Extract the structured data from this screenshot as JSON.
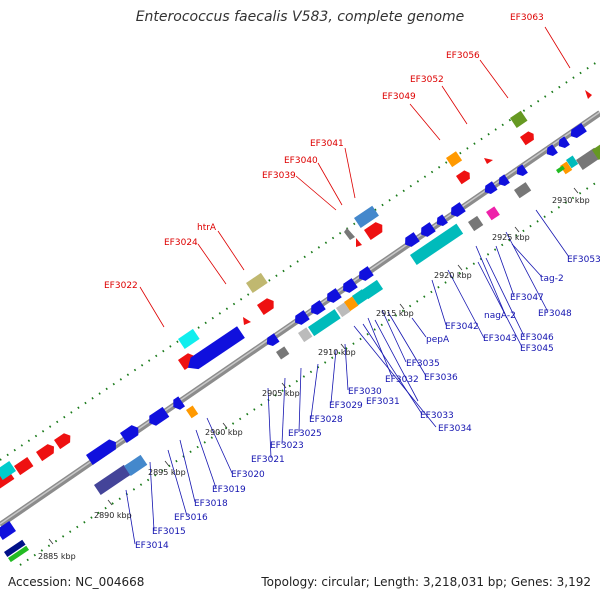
{
  "title": "Enterococcus faecalis V583, complete genome",
  "footer": {
    "accession": "Accession: NC_004668",
    "summary": "Topology: circular; Length: 3,218,031 bp; Genes: 3,192"
  },
  "colors": {
    "backbone": "#8c8c8c",
    "forward_label": "#dd0000",
    "reverse_label": "#1515b0",
    "tick_dots": "#1a7a1a"
  },
  "forward_labels": [
    "EF3063",
    "EF3056",
    "EF3052",
    "EF3049",
    "EF3041",
    "EF3040",
    "EF3039",
    "htrA",
    "EF3024",
    "EF3022"
  ],
  "reverse_labels": [
    "EF3053",
    "tag-2",
    "EF3047",
    "EF3048",
    "nagA-2",
    "EF3046",
    "EF3045",
    "EF3042",
    "EF3043",
    "pepA",
    "EF3035",
    "EF3036",
    "EF3032",
    "EF3031",
    "EF3033",
    "EF3034",
    "EF3030",
    "EF3029",
    "EF3028",
    "EF3025",
    "EF3023",
    "EF3021",
    "EF3020",
    "EF3019",
    "EF3018",
    "EF3016",
    "EF3015",
    "EF3014"
  ],
  "tick_labels": [
    "2930 kbp",
    "2925 kbp",
    "2920 kbp",
    "2915 kbp",
    "2910 kbp",
    "2905 kbp",
    "2900 kbp",
    "2895 kbp",
    "2890 kbp",
    "2885 kbp"
  ]
}
